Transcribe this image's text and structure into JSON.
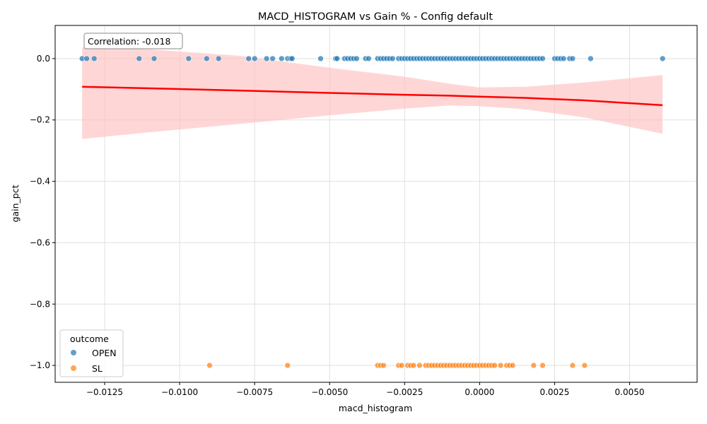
{
  "chart_data": {
    "type": "scatter",
    "title": "MACD_HISTOGRAM vs Gain % - Config default",
    "xlabel": "macd_histogram",
    "ylabel": "gain_pct",
    "xlim": [
      -0.01415,
      0.00725
    ],
    "ylim": [
      -1.055,
      0.108
    ],
    "xticks": [
      -0.0125,
      -0.01,
      -0.0075,
      -0.005,
      -0.0025,
      0.0,
      0.0025,
      0.005
    ],
    "xtick_labels": [
      "−0.0125",
      "−0.0100",
      "−0.0075",
      "−0.0050",
      "−0.0025",
      "0.0000",
      "0.0025",
      "0.0050"
    ],
    "yticks": [
      0.0,
      -0.2,
      -0.4,
      -0.6,
      -0.8,
      -1.0
    ],
    "ytick_labels": [
      "0.0",
      "−0.2",
      "−0.4",
      "−0.6",
      "−0.8",
      "−1.0"
    ],
    "grid": true,
    "legend": {
      "title": "outcome",
      "position": "bottom-left"
    },
    "annotation": "Correlation: -0.018",
    "series": [
      {
        "name": "OPEN",
        "color": "#1f77b4",
        "x": [
          -0.01325,
          -0.0131,
          -0.01285,
          -0.01135,
          -0.01085,
          -0.0097,
          -0.0091,
          -0.0087,
          -0.0077,
          -0.0075,
          -0.0071,
          -0.0069,
          -0.0066,
          -0.0064,
          -0.0063,
          -0.00625,
          -0.0053,
          -0.0048,
          -0.00475,
          -0.0045,
          -0.0044,
          -0.0043,
          -0.0042,
          -0.0041,
          -0.0038,
          -0.0037,
          -0.0034,
          -0.0033,
          -0.0032,
          -0.0031,
          -0.003,
          -0.0029,
          -0.0027,
          -0.0026,
          -0.0025,
          -0.0024,
          -0.0023,
          -0.0022,
          -0.0021,
          -0.002,
          -0.0019,
          -0.0018,
          -0.0017,
          -0.0016,
          -0.0015,
          -0.0014,
          -0.0013,
          -0.0012,
          -0.0011,
          -0.001,
          -0.0009,
          -0.0008,
          -0.0007,
          -0.0006,
          -0.0005,
          -0.0004,
          -0.0003,
          -0.0002,
          -0.0001,
          0.0,
          0.0001,
          0.0002,
          0.0003,
          0.0004,
          0.0005,
          0.0006,
          0.0007,
          0.0008,
          0.0009,
          0.001,
          0.0011,
          0.0012,
          0.0013,
          0.0014,
          0.0015,
          0.0016,
          0.0017,
          0.0018,
          0.0019,
          0.002,
          0.0021,
          0.0025,
          0.0026,
          0.0027,
          0.0028,
          0.003,
          0.0031,
          0.0037,
          0.0061
        ],
        "y": [
          0,
          0,
          0,
          0,
          0,
          0,
          0,
          0,
          0,
          0,
          0,
          0,
          0,
          0,
          0,
          0,
          0,
          0,
          0,
          0,
          0,
          0,
          0,
          0,
          0,
          0,
          0,
          0,
          0,
          0,
          0,
          0,
          0,
          0,
          0,
          0,
          0,
          0,
          0,
          0,
          0,
          0,
          0,
          0,
          0,
          0,
          0,
          0,
          0,
          0,
          0,
          0,
          0,
          0,
          0,
          0,
          0,
          0,
          0,
          0,
          0,
          0,
          0,
          0,
          0,
          0,
          0,
          0,
          0,
          0,
          0,
          0,
          0,
          0,
          0,
          0,
          0,
          0,
          0,
          0,
          0,
          0,
          0,
          0,
          0,
          0,
          0,
          0,
          0
        ]
      },
      {
        "name": "SL",
        "color": "#ff7f0e",
        "x": [
          -0.009,
          -0.0064,
          -0.0034,
          -0.0033,
          -0.0032,
          -0.0027,
          -0.0026,
          -0.0024,
          -0.0023,
          -0.0022,
          -0.002,
          -0.0018,
          -0.0017,
          -0.0016,
          -0.0015,
          -0.0014,
          -0.0013,
          -0.0012,
          -0.0011,
          -0.001,
          -0.0009,
          -0.0008,
          -0.0007,
          -0.0006,
          -0.0005,
          -0.0004,
          -0.0003,
          -0.0002,
          -0.0001,
          0.0,
          0.0001,
          0.0002,
          0.0003,
          0.0004,
          0.0005,
          0.0007,
          0.0009,
          0.001,
          0.0011,
          0.0018,
          0.0021,
          0.0031,
          0.0035
        ],
        "y": [
          -1,
          -1,
          -1,
          -1,
          -1,
          -1,
          -1,
          -1,
          -1,
          -1,
          -1,
          -1,
          -1,
          -1,
          -1,
          -1,
          -1,
          -1,
          -1,
          -1,
          -1,
          -1,
          -1,
          -1,
          -1,
          -1,
          -1,
          -1,
          -1,
          -1,
          -1,
          -1,
          -1,
          -1,
          -1,
          -1,
          -1,
          -1,
          -1,
          -1,
          -1,
          -1,
          -1
        ]
      }
    ],
    "regression": {
      "color": "#ff0000",
      "band_color": "#ffc0c0",
      "x": [
        -0.01325,
        -0.011,
        -0.008,
        -0.005,
        -0.0025,
        -0.001,
        0.0,
        0.0015,
        0.0035,
        0.0061
      ],
      "y": [
        -0.092,
        -0.097,
        -0.104,
        -0.112,
        -0.118,
        -0.121,
        -0.124,
        -0.128,
        -0.136,
        -0.152
      ],
      "lower": [
        -0.262,
        -0.24,
        -0.213,
        -0.185,
        -0.163,
        -0.153,
        -0.155,
        -0.165,
        -0.192,
        -0.245
      ],
      "upper": [
        0.036,
        0.03,
        0.009,
        -0.03,
        -0.059,
        -0.082,
        -0.094,
        -0.092,
        -0.078,
        -0.054
      ]
    }
  }
}
